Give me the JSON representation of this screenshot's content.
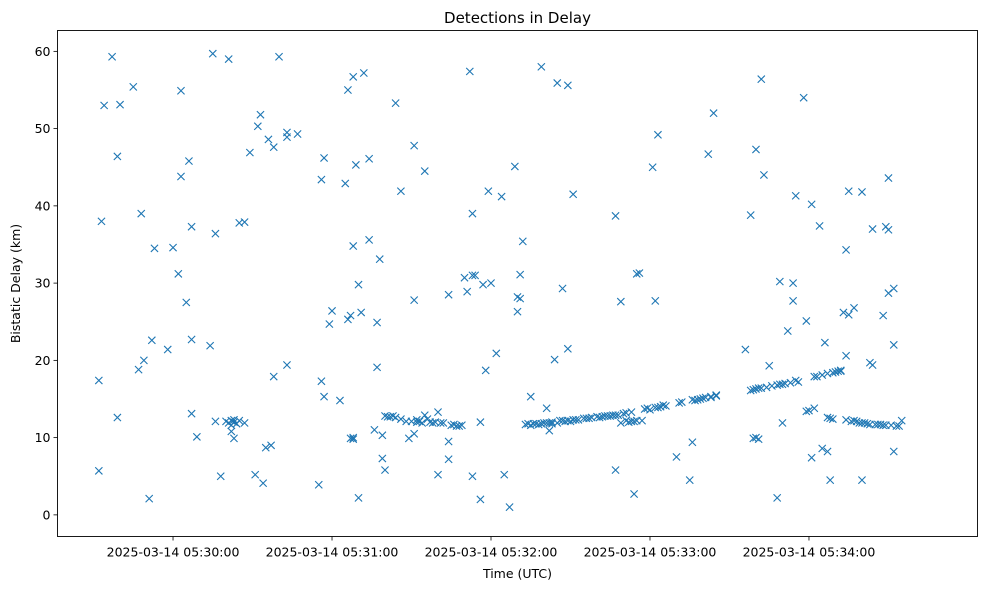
{
  "chart_data": {
    "type": "scatter",
    "title": "Detections in Delay",
    "xlabel": "Time (UTC)",
    "ylabel": "Bistatic Delay (km)",
    "x_unit": "seconds after 2025-03-14 05:29:00",
    "xlim": [
      -13.6,
      333.6
    ],
    "ylim": [
      -2.8,
      62.7
    ],
    "grid": false,
    "marker": "x",
    "color": "#1f77b4",
    "x_ticks": [
      {
        "value": 30,
        "label": "2025-03-14 05:30:00"
      },
      {
        "value": 90,
        "label": "2025-03-14 05:31:00"
      },
      {
        "value": 150,
        "label": "2025-03-14 05:32:00"
      },
      {
        "value": 210,
        "label": "2025-03-14 05:33:00"
      },
      {
        "value": 270,
        "label": "2025-03-14 05:34:00"
      }
    ],
    "y_ticks": [
      {
        "value": 0,
        "label": "0"
      },
      {
        "value": 10,
        "label": "10"
      },
      {
        "value": 20,
        "label": "20"
      },
      {
        "value": 30,
        "label": "30"
      },
      {
        "value": 40,
        "label": "40"
      },
      {
        "value": 50,
        "label": "50"
      },
      {
        "value": 60,
        "label": "60"
      }
    ],
    "points": [
      [
        2,
        17.4
      ],
      [
        2,
        5.7
      ],
      [
        3,
        38
      ],
      [
        4,
        53
      ],
      [
        7,
        59.3
      ],
      [
        9,
        46.4
      ],
      [
        9,
        12.6
      ],
      [
        10,
        53.1
      ],
      [
        15,
        55.4
      ],
      [
        17,
        18.8
      ],
      [
        18,
        39
      ],
      [
        19,
        20
      ],
      [
        21,
        2.1
      ],
      [
        22,
        22.6
      ],
      [
        23,
        34.5
      ],
      [
        28,
        21.4
      ],
      [
        30,
        34.6
      ],
      [
        32,
        31.2
      ],
      [
        33,
        54.9
      ],
      [
        33,
        43.8
      ],
      [
        35,
        27.5
      ],
      [
        36,
        45.8
      ],
      [
        37,
        37.3
      ],
      [
        37,
        22.7
      ],
      [
        37,
        13.1
      ],
      [
        39,
        10.1
      ],
      [
        44,
        21.9
      ],
      [
        45,
        59.7
      ],
      [
        46,
        12.1
      ],
      [
        46,
        36.4
      ],
      [
        48,
        5
      ],
      [
        50,
        12.1
      ],
      [
        51,
        59
      ],
      [
        51,
        11.9
      ],
      [
        52,
        12.2
      ],
      [
        52,
        11.6
      ],
      [
        52,
        10.8
      ],
      [
        53,
        12
      ],
      [
        53,
        9.9
      ],
      [
        53,
        12.3
      ],
      [
        54,
        11.8
      ],
      [
        55,
        12.2
      ],
      [
        55,
        37.8
      ],
      [
        57,
        37.9
      ],
      [
        57,
        11.9
      ],
      [
        59,
        46.9
      ],
      [
        61,
        5.2
      ],
      [
        62,
        50.3
      ],
      [
        63,
        51.8
      ],
      [
        64,
        4.1
      ],
      [
        65,
        8.7
      ],
      [
        66,
        48.6
      ],
      [
        67,
        9
      ],
      [
        68,
        47.6
      ],
      [
        68,
        17.9
      ],
      [
        70,
        59.3
      ],
      [
        73,
        49.5
      ],
      [
        73,
        48.9
      ],
      [
        73,
        19.4
      ],
      [
        77,
        49.3
      ],
      [
        85,
        3.9
      ],
      [
        86,
        43.4
      ],
      [
        86,
        17.3
      ],
      [
        87,
        46.2
      ],
      [
        87,
        15.3
      ],
      [
        89,
        24.7
      ],
      [
        90,
        26.4
      ],
      [
        93,
        14.8
      ],
      [
        95,
        42.9
      ],
      [
        96,
        55
      ],
      [
        96,
        25.3
      ],
      [
        97,
        25.8
      ],
      [
        97,
        9.9
      ],
      [
        98,
        10
      ],
      [
        98,
        56.7
      ],
      [
        98,
        34.8
      ],
      [
        98,
        9.8
      ],
      [
        99,
        45.3
      ],
      [
        100,
        29.8
      ],
      [
        100,
        2.2
      ],
      [
        101,
        26.2
      ],
      [
        102,
        57.2
      ],
      [
        104,
        35.6
      ],
      [
        104,
        46.1
      ],
      [
        106,
        11
      ],
      [
        107,
        24.9
      ],
      [
        107,
        19.1
      ],
      [
        108,
        33.1
      ],
      [
        109,
        7.3
      ],
      [
        109,
        10.3
      ],
      [
        110,
        12.8
      ],
      [
        110,
        5.8
      ],
      [
        111,
        12.7
      ],
      [
        112,
        12.7
      ],
      [
        113,
        12.8
      ],
      [
        114,
        53.3
      ],
      [
        114,
        12.6
      ],
      [
        116,
        12.4
      ],
      [
        116,
        41.9
      ],
      [
        118,
        12.1
      ],
      [
        119,
        9.9
      ],
      [
        120,
        12.1
      ],
      [
        121,
        47.8
      ],
      [
        121,
        27.8
      ],
      [
        121,
        10.5
      ],
      [
        122,
        12
      ],
      [
        122,
        12.3
      ],
      [
        123,
        12.1
      ],
      [
        124,
        11.9
      ],
      [
        125,
        12.9
      ],
      [
        125,
        44.5
      ],
      [
        126,
        12.4
      ],
      [
        127,
        12
      ],
      [
        128,
        11.9
      ],
      [
        129,
        12
      ],
      [
        130,
        5.2
      ],
      [
        130,
        13.3
      ],
      [
        131,
        11.9
      ],
      [
        132,
        11.9
      ],
      [
        134,
        9.5
      ],
      [
        134,
        7.2
      ],
      [
        134,
        28.5
      ],
      [
        135,
        11.6
      ],
      [
        136,
        11.7
      ],
      [
        137,
        11.5
      ],
      [
        138,
        11.5
      ],
      [
        139,
        11.6
      ],
      [
        140,
        30.7
      ],
      [
        141,
        28.9
      ],
      [
        142,
        57.4
      ],
      [
        143,
        39
      ],
      [
        143,
        31
      ],
      [
        143,
        5
      ],
      [
        144,
        31
      ],
      [
        146,
        2
      ],
      [
        146,
        12
      ],
      [
        147,
        29.8
      ],
      [
        148,
        18.7
      ],
      [
        149,
        41.9
      ],
      [
        150,
        30
      ],
      [
        152,
        20.9
      ],
      [
        154,
        41.2
      ],
      [
        155,
        5.2
      ],
      [
        157,
        1
      ],
      [
        159,
        45.1
      ],
      [
        160,
        28.2
      ],
      [
        160,
        26.3
      ],
      [
        161,
        31.1
      ],
      [
        161,
        28
      ],
      [
        162,
        35.4
      ],
      [
        163,
        11.7
      ],
      [
        164,
        11.8
      ],
      [
        165,
        15.3
      ],
      [
        165,
        11.6
      ],
      [
        166,
        11.8
      ],
      [
        167,
        11.8
      ],
      [
        168,
        11.7
      ],
      [
        169,
        11.8
      ],
      [
        169,
        58
      ],
      [
        170,
        11.9
      ],
      [
        171,
        11.9
      ],
      [
        171,
        13.8
      ],
      [
        172,
        11.9
      ],
      [
        172,
        10.9
      ],
      [
        173,
        11.8
      ],
      [
        173,
        12
      ],
      [
        174,
        20.1
      ],
      [
        175,
        55.9
      ],
      [
        175,
        11.9
      ],
      [
        176,
        12.2
      ],
      [
        177,
        12.2
      ],
      [
        177,
        29.3
      ],
      [
        178,
        12.1
      ],
      [
        179,
        12.2
      ],
      [
        179,
        55.6
      ],
      [
        179,
        21.5
      ],
      [
        180,
        12.1
      ],
      [
        181,
        41.5
      ],
      [
        181,
        12.3
      ],
      [
        182,
        12.3
      ],
      [
        183,
        12.3
      ],
      [
        185,
        12.5
      ],
      [
        186,
        12.5
      ],
      [
        187,
        12.5
      ],
      [
        188,
        12.6
      ],
      [
        190,
        12.7
      ],
      [
        191,
        12.6
      ],
      [
        192,
        12.7
      ],
      [
        193,
        12.8
      ],
      [
        194,
        12.8
      ],
      [
        195,
        12.8
      ],
      [
        196,
        12.9
      ],
      [
        197,
        38.7
      ],
      [
        197,
        5.8
      ],
      [
        197,
        12.9
      ],
      [
        198,
        12.9
      ],
      [
        199,
        27.6
      ],
      [
        199,
        11.9
      ],
      [
        200,
        13.1
      ],
      [
        201,
        12.2
      ],
      [
        201,
        13.2
      ],
      [
        202,
        12
      ],
      [
        203,
        12.1
      ],
      [
        203,
        13.3
      ],
      [
        204,
        12.1
      ],
      [
        204,
        2.7
      ],
      [
        205,
        31.2
      ],
      [
        205,
        12.2
      ],
      [
        206,
        31.3
      ],
      [
        207,
        12.2
      ],
      [
        208,
        13.7
      ],
      [
        209,
        13.8
      ],
      [
        210,
        13.6
      ],
      [
        211,
        45
      ],
      [
        212,
        27.7
      ],
      [
        212,
        13.9
      ],
      [
        213,
        49.2
      ],
      [
        213,
        13.9
      ],
      [
        214,
        14
      ],
      [
        215,
        14.2
      ],
      [
        216,
        14.1
      ],
      [
        220,
        7.5
      ],
      [
        221,
        14.5
      ],
      [
        222,
        14.6
      ],
      [
        225,
        4.5
      ],
      [
        226,
        9.4
      ],
      [
        226,
        14.9
      ],
      [
        227,
        14.8
      ],
      [
        228,
        14.9
      ],
      [
        229,
        15
      ],
      [
        230,
        15.1
      ],
      [
        231,
        15.2
      ],
      [
        232,
        46.7
      ],
      [
        233,
        15.3
      ],
      [
        233,
        15.2
      ],
      [
        234,
        52
      ],
      [
        235,
        15.5
      ],
      [
        235,
        15.4
      ],
      [
        246,
        21.4
      ],
      [
        248,
        38.8
      ],
      [
        248,
        16.1
      ],
      [
        249,
        9.9
      ],
      [
        249,
        16.2
      ],
      [
        250,
        10
      ],
      [
        250,
        47.3
      ],
      [
        250,
        16.3
      ],
      [
        251,
        9.8
      ],
      [
        251,
        16.4
      ],
      [
        252,
        56.4
      ],
      [
        252,
        16.4
      ],
      [
        253,
        44
      ],
      [
        254,
        16.5
      ],
      [
        255,
        19.3
      ],
      [
        256,
        16.7
      ],
      [
        258,
        2.2
      ],
      [
        258,
        16.8
      ],
      [
        259,
        30.2
      ],
      [
        259,
        16.9
      ],
      [
        260,
        11.9
      ],
      [
        260,
        16.9
      ],
      [
        261,
        17
      ],
      [
        262,
        23.8
      ],
      [
        263,
        17.1
      ],
      [
        264,
        30
      ],
      [
        264,
        27.7
      ],
      [
        265,
        41.3
      ],
      [
        265,
        17.4
      ],
      [
        266,
        17.2
      ],
      [
        268,
        54
      ],
      [
        269,
        25.1
      ],
      [
        269,
        13.4
      ],
      [
        270,
        13.5
      ],
      [
        271,
        40.2
      ],
      [
        271,
        7.4
      ],
      [
        272,
        13.8
      ],
      [
        272,
        17.9
      ],
      [
        273,
        17.9
      ],
      [
        274,
        37.4
      ],
      [
        275,
        8.6
      ],
      [
        275,
        18.1
      ],
      [
        276,
        22.3
      ],
      [
        277,
        12.6
      ],
      [
        277,
        8.2
      ],
      [
        277,
        18.3
      ],
      [
        278,
        4.5
      ],
      [
        278,
        12.5
      ],
      [
        279,
        18.4
      ],
      [
        279,
        12.4
      ],
      [
        280,
        18.5
      ],
      [
        281,
        18.6
      ],
      [
        282,
        18.7
      ],
      [
        282,
        18.6
      ],
      [
        283,
        26.2
      ],
      [
        284,
        34.3
      ],
      [
        284,
        20.6
      ],
      [
        284,
        12.3
      ],
      [
        285,
        41.9
      ],
      [
        285,
        25.9
      ],
      [
        286,
        12.1
      ],
      [
        287,
        26.8
      ],
      [
        287,
        12.2
      ],
      [
        288,
        12.1
      ],
      [
        289,
        11.9
      ],
      [
        290,
        41.8
      ],
      [
        290,
        4.5
      ],
      [
        290,
        11.9
      ],
      [
        291,
        11.9
      ],
      [
        292,
        11.8
      ],
      [
        293,
        19.7
      ],
      [
        293,
        11.7
      ],
      [
        294,
        19.4
      ],
      [
        294,
        37
      ],
      [
        295,
        11.7
      ],
      [
        296,
        11.7
      ],
      [
        297,
        11.7
      ],
      [
        298,
        25.8
      ],
      [
        298,
        11.6
      ],
      [
        299,
        37.3
      ],
      [
        299,
        11.6
      ],
      [
        300,
        43.6
      ],
      [
        300,
        36.9
      ],
      [
        300,
        28.7
      ],
      [
        301,
        11.6
      ],
      [
        302,
        29.3
      ],
      [
        302,
        22
      ],
      [
        302,
        8.2
      ],
      [
        303,
        11.5
      ],
      [
        304,
        11.5
      ],
      [
        305,
        12.2
      ]
    ]
  }
}
